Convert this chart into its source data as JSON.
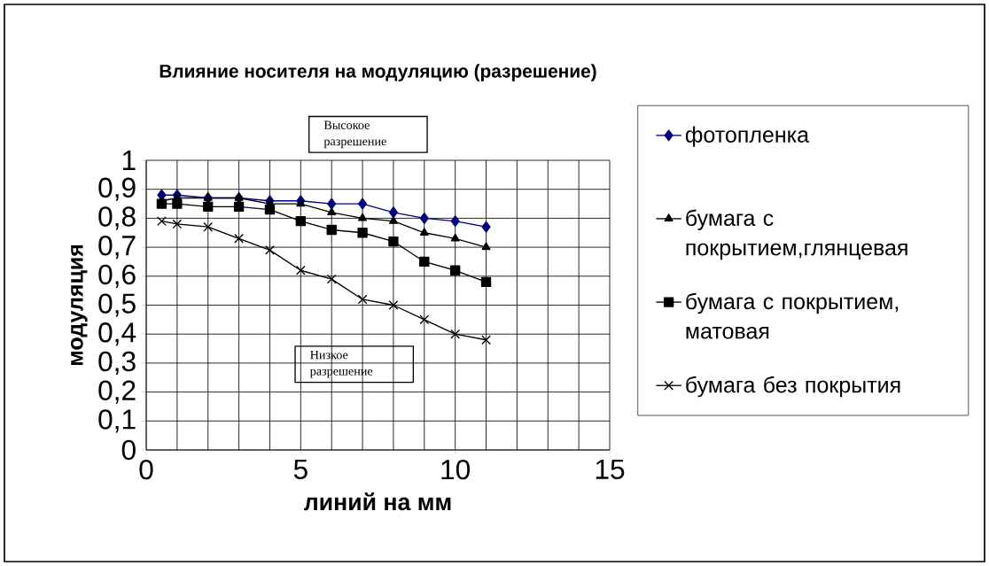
{
  "chart_data": {
    "type": "line",
    "title": "Влияние носителя на модуляцию (разрешение)",
    "xlabel": "линий на мм",
    "ylabel": "модуляция",
    "annotations": [
      "Высокое разрешение",
      "Низкое разрешение"
    ],
    "x": [
      0.5,
      1,
      2,
      3,
      4,
      5,
      6,
      7,
      8,
      9,
      10,
      11
    ],
    "series": [
      {
        "name": "фотопленка",
        "color": "#000080",
        "marker": "diamond",
        "values": [
          0.88,
          0.88,
          0.87,
          0.87,
          0.86,
          0.86,
          0.85,
          0.85,
          0.82,
          0.8,
          0.79,
          0.77
        ]
      },
      {
        "name": "бумага с покрытием,глянцевая",
        "color": "#000000",
        "marker": "triangle",
        "values": [
          0.86,
          0.87,
          0.87,
          0.87,
          0.85,
          0.85,
          0.82,
          0.8,
          0.79,
          0.75,
          0.73,
          0.7
        ]
      },
      {
        "name": "бумага с покрытием, матовая",
        "color": "#000000",
        "marker": "square",
        "values": [
          0.85,
          0.85,
          0.84,
          0.84,
          0.83,
          0.79,
          0.76,
          0.75,
          0.72,
          0.65,
          0.62,
          0.58
        ]
      },
      {
        "name": "бумага без покрытия",
        "color": "#000000",
        "marker": "cross",
        "values": [
          0.79,
          0.78,
          0.77,
          0.73,
          0.69,
          0.62,
          0.59,
          0.52,
          0.5,
          0.45,
          0.4,
          0.38
        ]
      }
    ],
    "xlim": [
      0,
      15
    ],
    "ylim": [
      0,
      1
    ],
    "xticks": [
      0,
      5,
      10,
      15
    ],
    "yticks": [
      0,
      {
        "value": 0.1,
        "label": "0,1"
      },
      {
        "value": 0.2,
        "label": "0,2"
      },
      {
        "value": 0.3,
        "label": "0,3"
      },
      {
        "value": 0.4,
        "label": "0,4"
      },
      {
        "value": 0.5,
        "label": "0,5"
      },
      {
        "value": 0.6,
        "label": "0,6"
      },
      {
        "value": 0.7,
        "label": "0,7"
      },
      {
        "value": 0.8,
        "label": "0,8"
      },
      {
        "value": 0.9,
        "label": "0,9"
      },
      1
    ],
    "grid": true,
    "legend": "right",
    "line_style": "solid"
  }
}
